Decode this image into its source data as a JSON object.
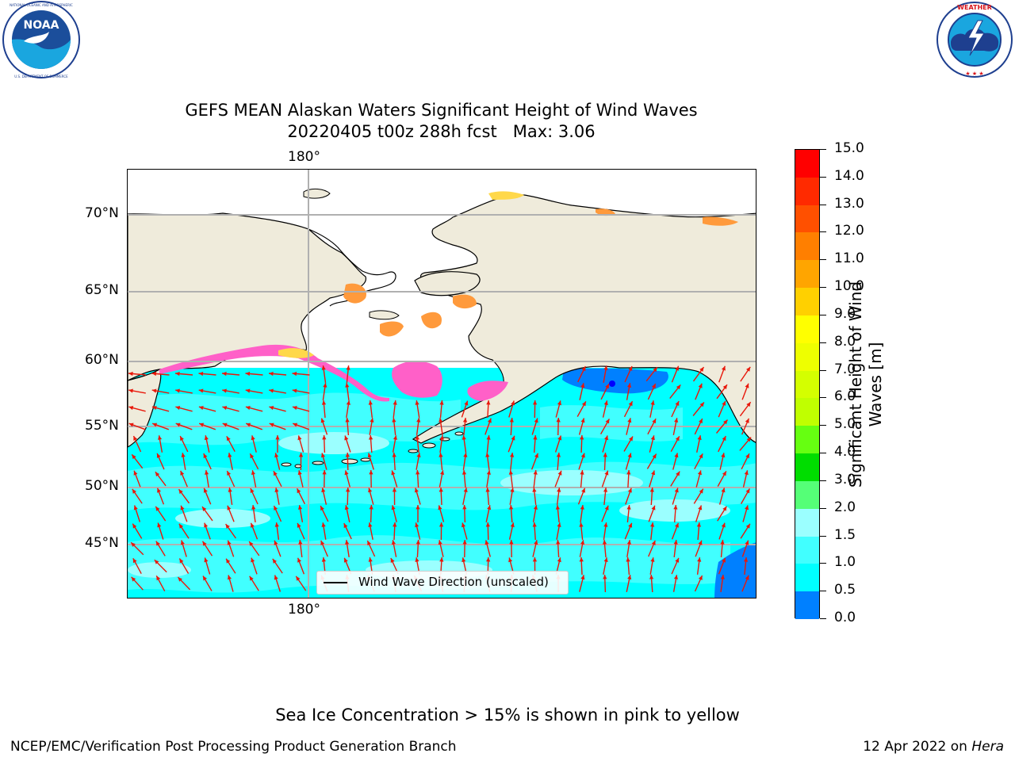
{
  "logos": {
    "left": {
      "name": "NOAA",
      "ring_text": "NATIONAL OCEANIC AND ATMOSPHERIC ADMINISTRATION · U.S. DEPARTMENT OF COMMERCE"
    },
    "right": {
      "name": "NATIONAL WEATHER SERVICE"
    }
  },
  "title": {
    "line1": "GEFS MEAN Alaskan Waters Significant Height of Wind Waves",
    "line2": "20220405 t00z 288h fcst   Max: 3.06"
  },
  "map": {
    "lon_labels_top": [
      "180°"
    ],
    "lon_labels_bottom": [
      "180°"
    ],
    "lat_labels": [
      "70°N",
      "65°N",
      "60°N",
      "55°N",
      "50°N",
      "45°N"
    ],
    "legend_label": "Wind Wave Direction (unscaled)",
    "arrow_color": "#e8170a",
    "land_color": "#efebdb",
    "sea_colors": [
      "#00ffff",
      "#41ffff",
      "#9bffff",
      "#0080ff"
    ],
    "ice_colors": [
      "#ff60c8",
      "#ff9a3c",
      "#ffd84a"
    ]
  },
  "colorbar": {
    "title_line1": "Significant Height of Wind",
    "title_line2": "Waves [m]",
    "ticks": [
      "15.0",
      "14.0",
      "13.0",
      "12.0",
      "11.0",
      "10.0",
      "9.0",
      "8.0",
      "7.0",
      "6.0",
      "5.0",
      "4.0",
      "3.0",
      "2.0",
      "1.5",
      "1.0",
      "0.5",
      "0.0"
    ],
    "colors_top_to_bottom": [
      "#ff0000",
      "#ff2a00",
      "#ff5000",
      "#ff7f00",
      "#ffa500",
      "#ffd000",
      "#ffff00",
      "#eeff00",
      "#d4ff00",
      "#c0ff00",
      "#66ff11",
      "#00dd00",
      "#55ff77",
      "#9bffff",
      "#41ffff",
      "#00ffff",
      "#0080ff",
      "#0000ff"
    ]
  },
  "notes": {
    "ice": "Sea Ice Concentration > 15% is shown in pink to yellow",
    "footer_left": "NCEP/EMC/Verification Post Processing Product Generation Branch",
    "footer_date": "12 Apr 2022 on ",
    "footer_machine": "Hera"
  }
}
